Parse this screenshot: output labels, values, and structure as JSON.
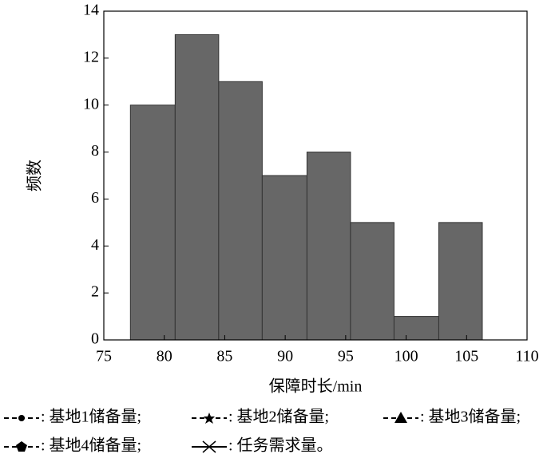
{
  "chart_data": {
    "type": "histogram",
    "xlabel": "保障时长/min",
    "ylabel": "频数",
    "bins": [
      77.2,
      80.9,
      84.5,
      88.1,
      91.8,
      95.4,
      99.0,
      102.7,
      106.3
    ],
    "counts": [
      10,
      13,
      11,
      7,
      8,
      5,
      1,
      5
    ],
    "color": "#676767",
    "xlim": [
      75,
      110
    ],
    "xticks": [
      75,
      80,
      85,
      90,
      95,
      100,
      105,
      110
    ],
    "ylim": [
      0,
      14
    ],
    "yticks": [
      0,
      2,
      4,
      6,
      8,
      10,
      12,
      14
    ],
    "legend": [
      ": 基地1储备量;",
      ": 基地2储备量;",
      ": 基地3储备量;",
      ": 基地4储备量;",
      ": 任务需求量。"
    ]
  }
}
